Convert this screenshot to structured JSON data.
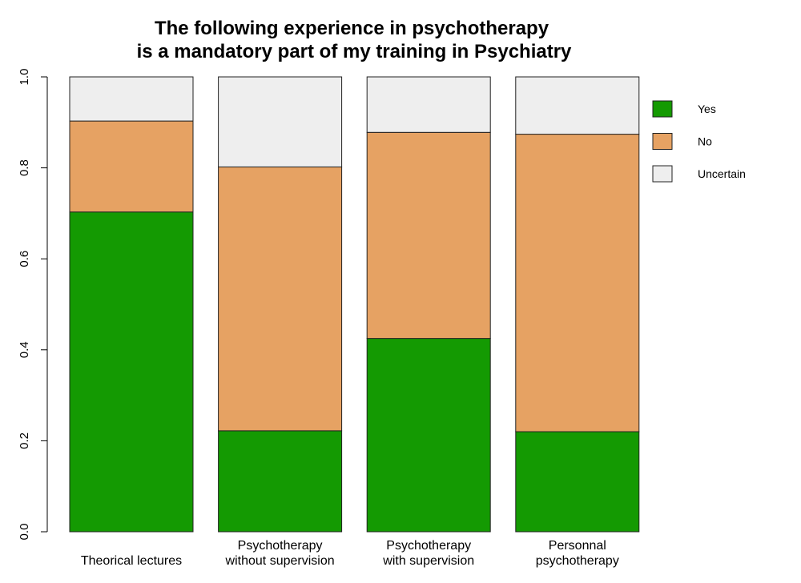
{
  "chart_data": {
    "type": "bar",
    "stacked": true,
    "title_lines": [
      "The following experience in psychotherapy",
      "is a mandatory part of my training in Psychiatry"
    ],
    "categories": [
      [
        "Theorical lectures"
      ],
      [
        "Psychotherapy",
        "without supervision"
      ],
      [
        "Psychotherapy",
        "with supervision"
      ],
      [
        "Personnal",
        "psychotherapy"
      ]
    ],
    "series": [
      {
        "name": "Yes",
        "color": "#149A02",
        "values": [
          0.703,
          0.222,
          0.425,
          0.22
        ]
      },
      {
        "name": "No",
        "color": "#E6A263",
        "values": [
          0.2,
          0.58,
          0.453,
          0.654
        ]
      },
      {
        "name": "Uncertain",
        "color": "#EEEEEE",
        "values": [
          0.097,
          0.198,
          0.122,
          0.126
        ]
      }
    ],
    "ylim": [
      0,
      1
    ],
    "yticks": [
      "0.0",
      "0.2",
      "0.4",
      "0.6",
      "0.8",
      "1.0"
    ],
    "grid": false,
    "legend_position": "right"
  }
}
